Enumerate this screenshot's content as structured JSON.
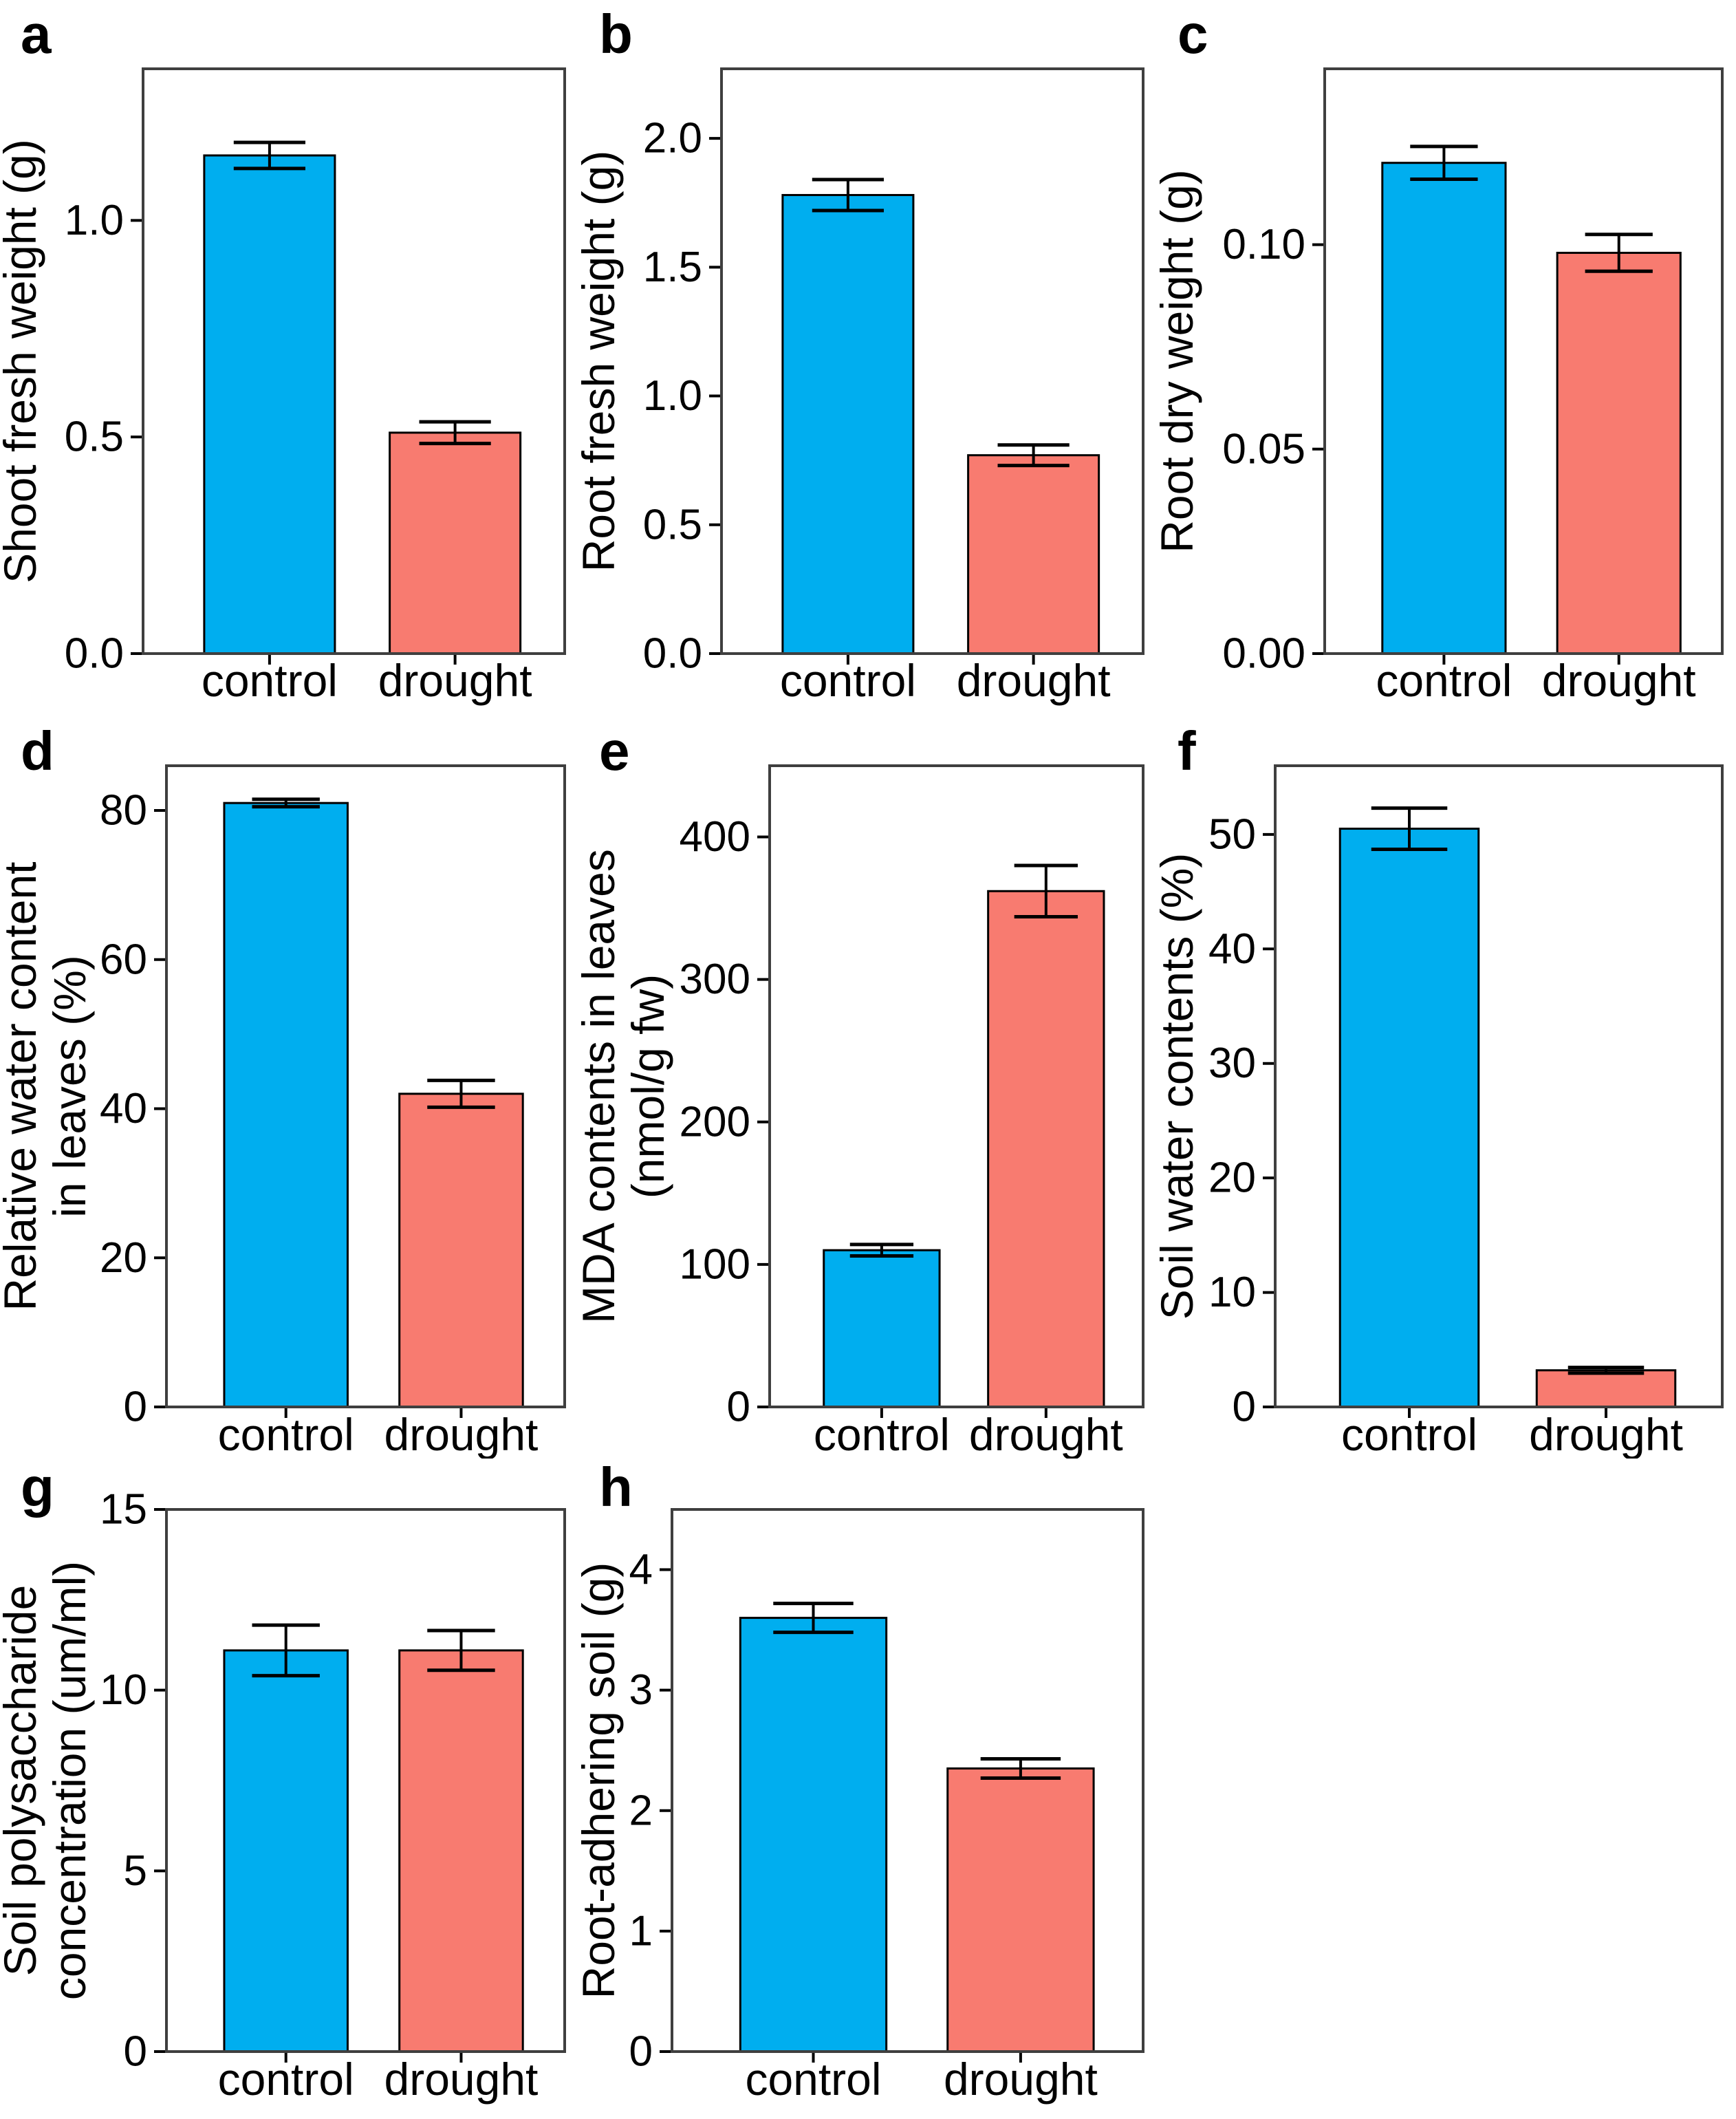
{
  "figure": {
    "background": "#FFFFFF",
    "panel_letters": [
      "a",
      "b",
      "c",
      "d",
      "e",
      "f",
      "g",
      "h"
    ]
  },
  "colors": {
    "control_bar": "#00AEEF",
    "drought_bar": "#F87B70",
    "bar_outline": "#000000",
    "error_bar": "#000000",
    "frame": "#3F3F3F",
    "text": "#000000"
  },
  "categories": [
    "control",
    "drought"
  ],
  "chart_data": [
    {
      "panel": "a",
      "type": "bar",
      "ylabel_lines": [
        "Shoot fresh weight (g)"
      ],
      "categories": [
        "control",
        "drought"
      ],
      "values": [
        1.15,
        0.51
      ],
      "errors": [
        0.03,
        0.025
      ],
      "yticks": [
        0,
        0.5,
        1.0
      ],
      "ytick_labels": [
        "0.0",
        "0.5",
        "1.0"
      ],
      "ylim": [
        0,
        1.35
      ],
      "grid": false,
      "legend": false
    },
    {
      "panel": "b",
      "type": "bar",
      "ylabel_lines": [
        "Root fresh weight (g)"
      ],
      "categories": [
        "control",
        "drought"
      ],
      "values": [
        1.78,
        0.77
      ],
      "errors": [
        0.06,
        0.04
      ],
      "yticks": [
        0,
        0.5,
        1.0,
        1.5,
        2.0
      ],
      "ytick_labels": [
        "0.0",
        "0.5",
        "1.0",
        "1.5",
        "2.0"
      ],
      "ylim": [
        0,
        2.27
      ],
      "grid": false,
      "legend": false
    },
    {
      "panel": "c",
      "type": "bar",
      "ylabel_lines": [
        "Root dry weight (g)"
      ],
      "categories": [
        "control",
        "drought"
      ],
      "values": [
        0.12,
        0.098
      ],
      "errors": [
        0.004,
        0.0045
      ],
      "yticks": [
        0,
        0.05,
        0.1
      ],
      "ytick_labels": [
        "0.00",
        "0.05",
        "0.10"
      ],
      "ylim": [
        0,
        0.143
      ],
      "grid": false,
      "legend": false
    },
    {
      "panel": "d",
      "type": "bar",
      "ylabel_lines": [
        "Relative water content",
        "in leaves (%)"
      ],
      "categories": [
        "control",
        "drought"
      ],
      "values": [
        81,
        42
      ],
      "errors": [
        0.5,
        1.8
      ],
      "yticks": [
        0,
        20,
        40,
        60,
        80
      ],
      "ytick_labels": [
        "0",
        "20",
        "40",
        "60",
        "80"
      ],
      "ylim": [
        0,
        86
      ],
      "grid": false,
      "legend": false
    },
    {
      "panel": "e",
      "type": "bar",
      "ylabel_lines": [
        "MDA contents in leaves",
        "(nmol/g fw)"
      ],
      "categories": [
        "control",
        "drought"
      ],
      "values": [
        110,
        362
      ],
      "errors": [
        4,
        18
      ],
      "yticks": [
        0,
        100,
        200,
        300,
        400
      ],
      "ytick_labels": [
        "0",
        "100",
        "200",
        "300",
        "400"
      ],
      "ylim": [
        0,
        450
      ],
      "grid": false,
      "legend": false
    },
    {
      "panel": "f",
      "type": "bar",
      "ylabel_lines": [
        "Soil water contents (%)"
      ],
      "categories": [
        "control",
        "drought"
      ],
      "values": [
        50.5,
        3.2
      ],
      "errors": [
        1.8,
        0.25
      ],
      "yticks": [
        0,
        10,
        20,
        30,
        40,
        50
      ],
      "ytick_labels": [
        "0",
        "10",
        "20",
        "30",
        "40",
        "50"
      ],
      "ylim": [
        0,
        56
      ],
      "grid": false,
      "legend": false
    },
    {
      "panel": "g",
      "type": "bar",
      "ylabel_lines": [
        "Soil polysaccharide",
        "concentration (um/ml)"
      ],
      "categories": [
        "control",
        "drought"
      ],
      "values": [
        11.1,
        11.1
      ],
      "errors": [
        0.7,
        0.55
      ],
      "yticks": [
        0,
        5,
        10,
        15
      ],
      "ytick_labels": [
        "0",
        "5",
        "10",
        "15"
      ],
      "ylim": [
        0,
        15
      ],
      "grid": false,
      "legend": false
    },
    {
      "panel": "h",
      "type": "bar",
      "ylabel_lines": [
        "Root-adhering soil (g)"
      ],
      "categories": [
        "control",
        "drought"
      ],
      "values": [
        3.6,
        2.35
      ],
      "errors": [
        0.12,
        0.08
      ],
      "yticks": [
        0,
        1,
        2,
        3,
        4
      ],
      "ytick_labels": [
        "0",
        "1",
        "2",
        "3",
        "4"
      ],
      "ylim": [
        0,
        4.5
      ],
      "grid": false,
      "legend": false
    }
  ]
}
